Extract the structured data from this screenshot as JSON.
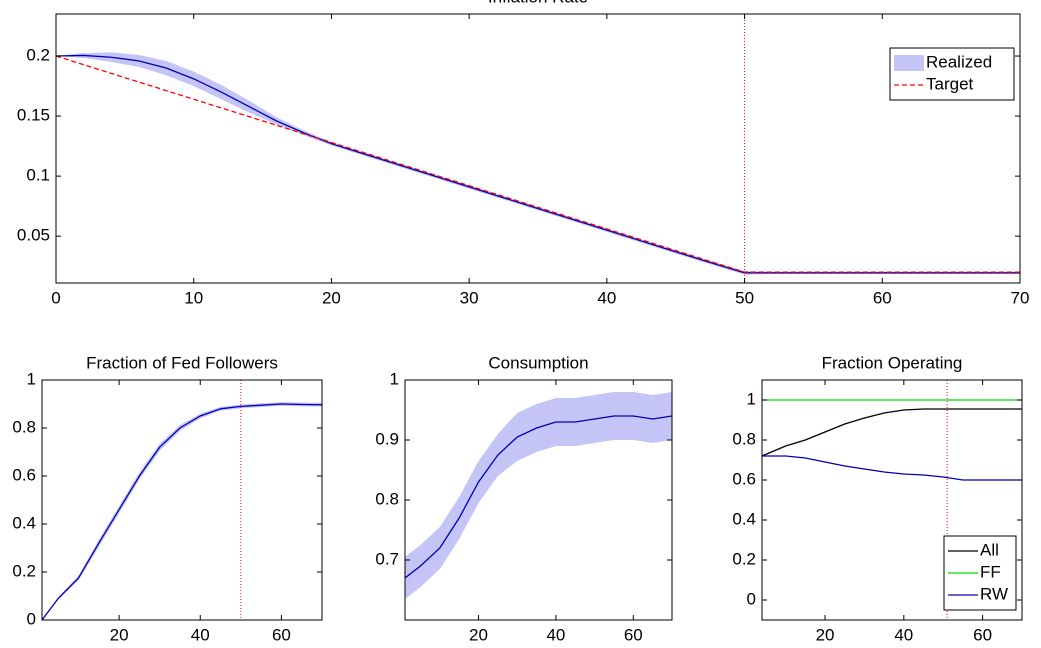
{
  "chart_data": [
    {
      "type": "line",
      "title": "Inflation Rate",
      "x": [
        0,
        2,
        4,
        6,
        8,
        10,
        12,
        14,
        16,
        18,
        20,
        22,
        24,
        26,
        28,
        30,
        32,
        34,
        36,
        38,
        40,
        42,
        44,
        46,
        48,
        50,
        52,
        54,
        56,
        58,
        60,
        62,
        64,
        66,
        68,
        70
      ],
      "series": [
        {
          "name": "Realized",
          "color": "#0000b0",
          "band_color": "#c4c4f7",
          "values": [
            0.2,
            0.2005,
            0.199,
            0.196,
            0.19,
            0.181,
            0.17,
            0.158,
            0.146,
            0.136,
            0.127,
            0.1198,
            0.1126,
            0.1054,
            0.0982,
            0.091,
            0.0838,
            0.0766,
            0.0694,
            0.0622,
            0.055,
            0.0478,
            0.0406,
            0.0334,
            0.0263,
            0.0195,
            0.0195,
            0.0195,
            0.0195,
            0.0195,
            0.0195,
            0.0195,
            0.0195,
            0.0195,
            0.0195,
            0.0195
          ],
          "errors": [
            0,
            0.002,
            0.004,
            0.005,
            0.006,
            0.006,
            0.006,
            0.005,
            0.003,
            0.002,
            0.0015,
            0.0015,
            0.0015,
            0.0015,
            0.0015,
            0.0015,
            0.0015,
            0.0015,
            0.0015,
            0.0015,
            0.0015,
            0.0015,
            0.0015,
            0.0015,
            0.0015,
            0.0015,
            0.001,
            0.001,
            0.001,
            0.001,
            0.001,
            0.001,
            0.001,
            0.001,
            0.001,
            0.001
          ]
        },
        {
          "name": "Target",
          "color": "#ff0000",
          "linestyle": "dashed",
          "values": [
            0.2,
            0.1928,
            0.1856,
            0.1784,
            0.1712,
            0.164,
            0.1568,
            0.1496,
            0.1424,
            0.1352,
            0.128,
            0.1208,
            0.1136,
            0.1064,
            0.0992,
            0.092,
            0.0848,
            0.0776,
            0.0704,
            0.0632,
            0.056,
            0.0488,
            0.0416,
            0.0344,
            0.0272,
            0.02,
            0.02,
            0.02,
            0.02,
            0.02,
            0.02,
            0.02,
            0.02,
            0.02,
            0.02,
            0.02
          ]
        }
      ],
      "xlim": [
        0,
        70
      ],
      "xticks": [
        0,
        10,
        20,
        30,
        40,
        50,
        60,
        70
      ],
      "ylim": [
        0.011,
        0.235
      ],
      "yticks": [
        0.05,
        0.1,
        0.15,
        0.2
      ],
      "vline": 50,
      "vline_color": "#ff0000",
      "legend": "upper right"
    },
    {
      "type": "line",
      "title": "Fraction of Fed Followers",
      "x": [
        1,
        5,
        10,
        15,
        20,
        25,
        30,
        35,
        40,
        45,
        50,
        55,
        60,
        65,
        70
      ],
      "series": [
        {
          "color": "#0000b0",
          "band_color": "#c4c4f7",
          "values": [
            0,
            0.09,
            0.175,
            0.32,
            0.46,
            0.6,
            0.72,
            0.8,
            0.85,
            0.88,
            0.89,
            0.895,
            0.9,
            0.898,
            0.897
          ],
          "errors": [
            0,
            0.005,
            0.01,
            0.015,
            0.015,
            0.015,
            0.015,
            0.012,
            0.01,
            0.008,
            0.008,
            0.008,
            0.008,
            0.008,
            0.008
          ]
        }
      ],
      "xlim": [
        1,
        70
      ],
      "xticks": [
        20,
        40,
        60
      ],
      "ylim": [
        0,
        1
      ],
      "yticks": [
        0,
        0.2,
        0.4,
        0.6,
        0.8,
        1
      ],
      "vline": 50,
      "vline_color": "#ff0000"
    },
    {
      "type": "line",
      "title": "Consumption",
      "x": [
        1,
        5,
        10,
        15,
        20,
        25,
        30,
        35,
        40,
        45,
        50,
        55,
        60,
        65,
        70
      ],
      "series": [
        {
          "color": "#0000b0",
          "band_color": "#c4c4f7",
          "values": [
            0.67,
            0.69,
            0.72,
            0.77,
            0.83,
            0.875,
            0.905,
            0.92,
            0.93,
            0.93,
            0.935,
            0.94,
            0.94,
            0.935,
            0.94
          ],
          "errors": [
            0.035,
            0.035,
            0.035,
            0.035,
            0.035,
            0.035,
            0.04,
            0.04,
            0.04,
            0.04,
            0.04,
            0.04,
            0.04,
            0.04,
            0.04
          ]
        }
      ],
      "xlim": [
        1,
        70
      ],
      "xticks": [
        20,
        40,
        60
      ],
      "ylim": [
        0.6,
        1
      ],
      "yticks": [
        0.7,
        0.8,
        0.9,
        1
      ]
    },
    {
      "type": "line",
      "title": "Fraction Operating",
      "x": [
        4,
        10,
        15,
        20,
        25,
        30,
        35,
        40,
        45,
        50,
        55,
        60,
        65,
        70
      ],
      "series": [
        {
          "name": "All",
          "color": "#000000",
          "values": [
            0.72,
            0.77,
            0.8,
            0.84,
            0.88,
            0.91,
            0.935,
            0.95,
            0.955,
            0.955,
            0.955,
            0.955,
            0.955,
            0.955
          ]
        },
        {
          "name": "FF",
          "color": "#00dd00",
          "values": [
            1,
            1,
            1,
            1,
            1,
            1,
            1,
            1,
            1,
            1,
            1,
            1,
            1,
            1
          ]
        },
        {
          "name": "RW",
          "color": "#0000b0",
          "values": [
            0.72,
            0.72,
            0.71,
            0.69,
            0.67,
            0.655,
            0.64,
            0.63,
            0.625,
            0.615,
            0.6,
            0.6,
            0.6,
            0.6
          ]
        }
      ],
      "xlim": [
        4,
        70
      ],
      "xticks": [
        20,
        40,
        60
      ],
      "ylim": [
        -0.1,
        1.1
      ],
      "yticks": [
        0,
        0.2,
        0.4,
        0.6,
        0.8,
        1
      ],
      "vline": 51,
      "vline_color": "#ff0000",
      "legend": "lower right"
    }
  ]
}
